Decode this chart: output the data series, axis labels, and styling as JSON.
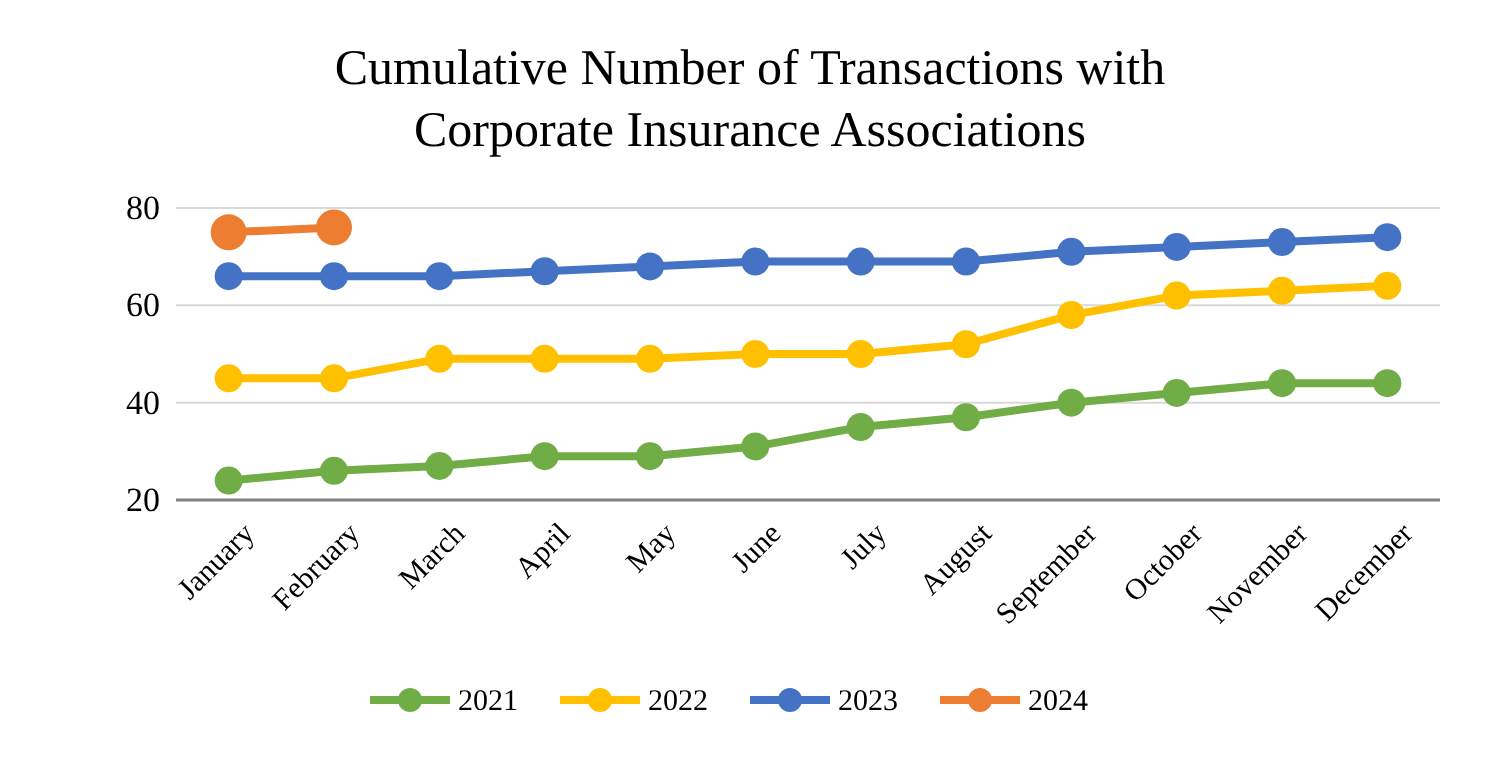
{
  "chart_data": {
    "type": "line",
    "title": "Cumulative Number of Transactions with\nCorporate Insurance Associations",
    "categories": [
      "January",
      "February",
      "March",
      "April",
      "May",
      "June",
      "July",
      "August",
      "September",
      "October",
      "November",
      "December"
    ],
    "series": [
      {
        "name": "2021",
        "color": "#70ad47",
        "values": [
          24,
          26,
          27,
          29,
          29,
          31,
          35,
          37,
          40,
          42,
          44,
          44
        ]
      },
      {
        "name": "2022",
        "color": "#ffc000",
        "values": [
          45,
          45,
          49,
          49,
          49,
          50,
          50,
          52,
          58,
          62,
          63,
          64
        ]
      },
      {
        "name": "2023",
        "color": "#4472c4",
        "values": [
          66,
          66,
          66,
          67,
          68,
          69,
          69,
          69,
          71,
          72,
          73,
          74
        ]
      },
      {
        "name": "2024",
        "color": "#ed7d31",
        "values": [
          75,
          76,
          null,
          null,
          null,
          null,
          null,
          null,
          null,
          null,
          null,
          null
        ]
      }
    ],
    "ylim": [
      20,
      80
    ],
    "yticks": [
      20,
      40,
      60,
      80
    ],
    "grid": "y",
    "legend": "bottom",
    "marker": "circle",
    "line_style": "solid"
  }
}
